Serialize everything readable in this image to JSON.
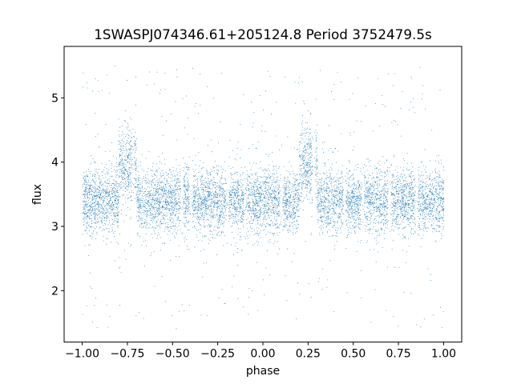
{
  "chart_data": {
    "type": "scatter",
    "title": "1SWASPJ074346.61+205124.8 Period 3752479.5s",
    "xlabel": "phase",
    "ylabel": "flux",
    "xlim": [
      -1.1,
      1.1
    ],
    "ylim": [
      1.2,
      5.8
    ],
    "xticks": [
      -1.0,
      -0.75,
      -0.5,
      -0.25,
      0.0,
      0.25,
      0.5,
      0.75,
      1.0
    ],
    "xtick_labels": [
      "−1.00",
      "−0.75",
      "−0.50",
      "−0.25",
      "0.00",
      "0.25",
      "0.50",
      "0.75",
      "1.00"
    ],
    "yticks": [
      2,
      3,
      4,
      5
    ],
    "ytick_labels": [
      "2",
      "3",
      "4",
      "5"
    ],
    "grid": false,
    "marker_color": "#1f77b4",
    "series_description": {
      "phase_range": [
        -1.0,
        1.0
      ],
      "baseline_flux": 3.4,
      "typical_spread": 0.25,
      "bright_excursion_max": 5.5,
      "faint_excursion_min": 1.4,
      "brighter_segments": [
        {
          "phase": [
            -0.8,
            -0.7
          ],
          "flux_center": 3.95
        },
        {
          "phase": [
            0.2,
            0.3
          ],
          "flux_center": 3.95
        }
      ],
      "gaps_phase": [
        -0.72,
        -0.45,
        -0.4,
        -0.2,
        -0.1,
        0.1,
        0.28,
        0.45,
        0.55,
        0.7,
        0.85
      ]
    }
  }
}
